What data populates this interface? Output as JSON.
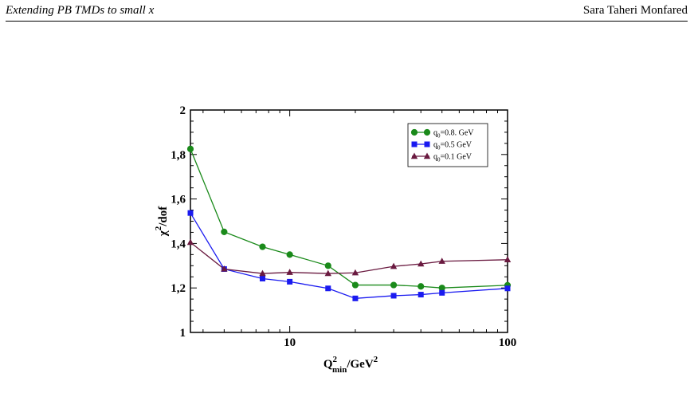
{
  "header": {
    "left": "Extending PB TMDs to small x",
    "right": "Sara Taheri Monfared"
  },
  "chart_data": {
    "type": "line",
    "x_scale": "log",
    "xlim": [
      3.5,
      100
    ],
    "ylim": [
      1,
      2
    ],
    "xticks": [
      10,
      100
    ],
    "xtick_labels": [
      "10",
      "100"
    ],
    "yticks": [
      1,
      1.2,
      1.4,
      1.6,
      1.8,
      2
    ],
    "ytick_labels": [
      "1",
      "1,2",
      "1,4",
      "1,6",
      "1,8",
      "2"
    ],
    "xlabel": {
      "base": "Q",
      "sup": "2",
      "sub": "min",
      "suffix": "/GeV",
      "suffix_sup": "2"
    },
    "ylabel": {
      "base": "χ",
      "sup": "2",
      "suffix": "/dof"
    },
    "legend_position": "top-right",
    "x": [
      3.5,
      5,
      7.5,
      10,
      15,
      20,
      30,
      40,
      50,
      100
    ],
    "series": [
      {
        "name": "q0=0.8. GeV",
        "label_main": "q",
        "label_sub": "0",
        "label_rest": "=0.8. GeV",
        "color": "#1a8a1a",
        "marker": "circle",
        "values": [
          1.825,
          1.452,
          1.385,
          1.35,
          1.3,
          1.213,
          1.213,
          1.207,
          1.2,
          1.212
        ]
      },
      {
        "name": "q0=0.5 GeV",
        "label_main": "q",
        "label_sub": "0",
        "label_rest": "=0.5 GeV",
        "color": "#1a1af0",
        "marker": "square",
        "values": [
          1.537,
          1.285,
          1.242,
          1.228,
          1.198,
          1.153,
          1.165,
          1.17,
          1.178,
          1.198
        ]
      },
      {
        "name": "q0=0.1 GeV",
        "label_main": "q",
        "label_sub": "0",
        "label_rest": "=0.1 GeV",
        "color": "#6a1a40",
        "marker": "triangle",
        "values": [
          1.405,
          1.285,
          1.265,
          1.27,
          1.265,
          1.268,
          1.297,
          1.308,
          1.32,
          1.327
        ]
      }
    ]
  }
}
